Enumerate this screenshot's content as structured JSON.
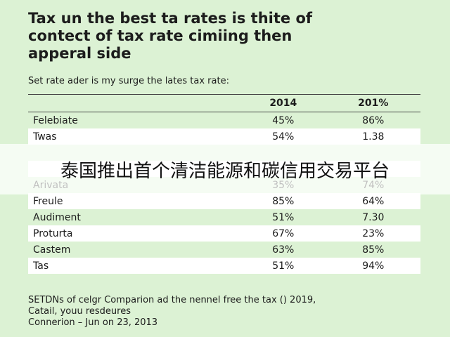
{
  "header": {
    "title_lines": [
      "Tax un the best ta rates is thite of",
      "contect of tax rate cimiing then",
      "apperal side"
    ],
    "subtitle": "Set rate ader is my surge the lates tax rate:"
  },
  "table": {
    "columns": [
      "2014",
      "201%"
    ],
    "rows": [
      [
        "Felebiate",
        "45%",
        "86%"
      ],
      [
        "Twas",
        "54%",
        "1.38"
      ],
      null,
      null,
      [
        "Arivata",
        "35%",
        "74%"
      ],
      [
        "Freule",
        "85%",
        "64%"
      ],
      [
        "Audiment",
        "51%",
        "7.30"
      ],
      [
        "Proturta",
        "67%",
        "23%"
      ],
      [
        "Castem",
        "63%",
        "85%"
      ],
      [
        "Tas",
        "51%",
        "94%"
      ]
    ]
  },
  "footer": {
    "lines": [
      "SETDNs of celgr Comparion ad the nennel free the tax () 2019,",
      "Catail, youu resdeures",
      "Connerion – Jun on 23, 2013"
    ]
  },
  "overlay": {
    "caption": "泰国推出首个清洁能源和碳信用交易平台"
  }
}
